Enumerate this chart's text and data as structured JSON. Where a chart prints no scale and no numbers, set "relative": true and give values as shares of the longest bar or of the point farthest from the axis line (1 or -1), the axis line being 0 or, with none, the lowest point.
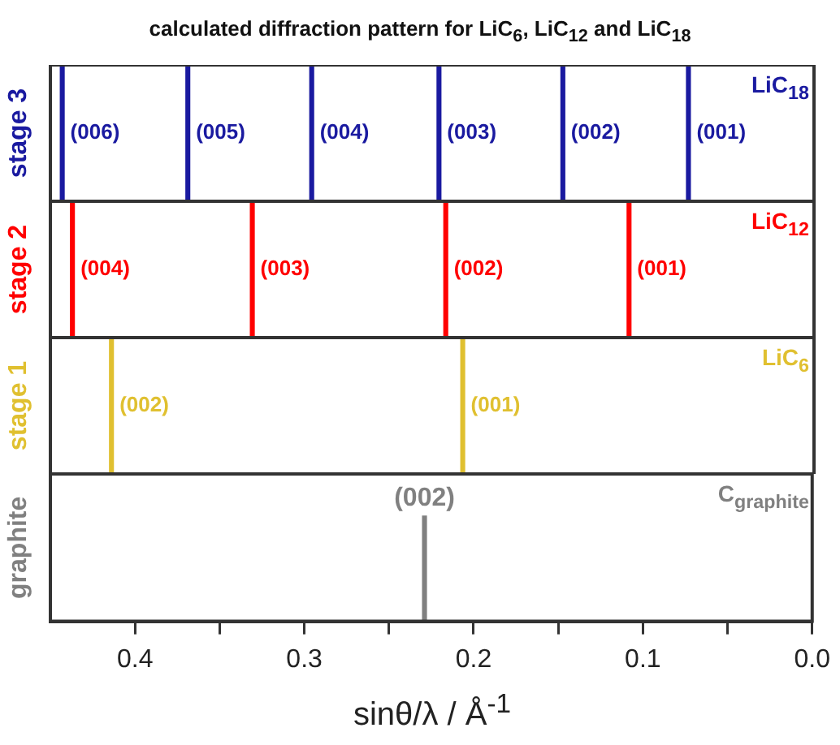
{
  "chart_data": [
    {
      "type": "bar",
      "title": "calculated diffraction pattern for LiC$_{6}$, LiC$_{12}$ and LiC$_{18}$",
      "ylabel": "stage 3",
      "relative": true,
      "xlim": [
        0.45,
        0
      ],
      "tick_labels": false,
      "x": [
        0.443,
        0.369,
        0.296,
        0.221,
        0.148,
        0.074
      ],
      "series": [
        {
          "name": "LiC$_{18}$",
          "color": "#1a1aa0",
          "values": [
            1,
            1,
            1,
            1,
            1,
            1
          ]
        }
      ],
      "annotations": [
        "(006)",
        "(005)",
        "(004)",
        "(003)",
        "(002)",
        "(001)"
      ]
    },
    {
      "type": "bar",
      "ylabel": "stage 2",
      "relative": true,
      "xlim": [
        0.45,
        0
      ],
      "tick_labels": false,
      "x": [
        0.437,
        0.331,
        0.217,
        0.109
      ],
      "series": [
        {
          "name": "LiC$_{12}$",
          "color": "#ff0000",
          "values": [
            1,
            1,
            1,
            1
          ]
        }
      ],
      "annotations": [
        "(004)",
        "(003)",
        "(002)",
        "(001)"
      ]
    },
    {
      "type": "bar",
      "ylabel": "stage 1",
      "relative": true,
      "xlim": [
        0.45,
        0
      ],
      "tick_labels": false,
      "x": [
        0.414,
        0.207
      ],
      "series": [
        {
          "name": "LiC$_{6}$",
          "color": "#e0c030",
          "values": [
            1,
            1
          ]
        }
      ],
      "annotations": [
        "(002)",
        "(001)"
      ]
    },
    {
      "type": "bar",
      "ylabel": "graphite",
      "xlabel": "sinθ/λ / Å$^{-1}$",
      "relative": true,
      "xlim": [
        0.45,
        0
      ],
      "tick_labels": "x",
      "x": [
        0.229
      ],
      "xticks": [
        0.4,
        {
          "value": 0.35,
          "label": null
        },
        0.3,
        {
          "value": 0.25,
          "label": null
        },
        0.2,
        {
          "value": 0.15,
          "label": null
        },
        0.1,
        {
          "value": 0.05,
          "label": null
        },
        {
          "value": 0,
          "label": "0.0"
        }
      ],
      "series": [
        {
          "name": "C$_{graphite}$",
          "color": "#808080",
          "values": [
            1
          ]
        }
      ],
      "annotations": [
        "(002)"
      ]
    }
  ]
}
